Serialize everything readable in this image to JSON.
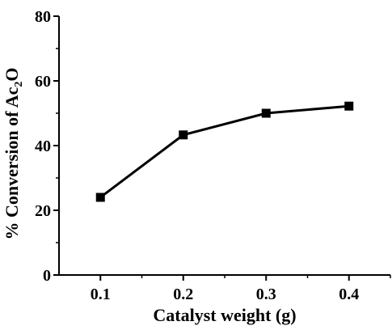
{
  "chart_data": {
    "type": "line",
    "title": "",
    "xlabel": "Catalyst weight (g)",
    "ylabel": {
      "main": "% Conversion of Ac",
      "sub": "2",
      "tail": "O"
    },
    "x": [
      0.1,
      0.2,
      0.3,
      0.4
    ],
    "series": [
      {
        "values": [
          24,
          43.3,
          50,
          52.2
        ],
        "color": "#000000",
        "marker": "square"
      }
    ],
    "xlim": [
      0.05,
      0.45
    ],
    "ylim": [
      0,
      80
    ],
    "xticks": [
      "0.1",
      "0.2",
      "0.3",
      "0.4"
    ],
    "yticks": [
      "0",
      "20",
      "40",
      "60",
      "80"
    ],
    "grid": false,
    "legend": "none"
  }
}
